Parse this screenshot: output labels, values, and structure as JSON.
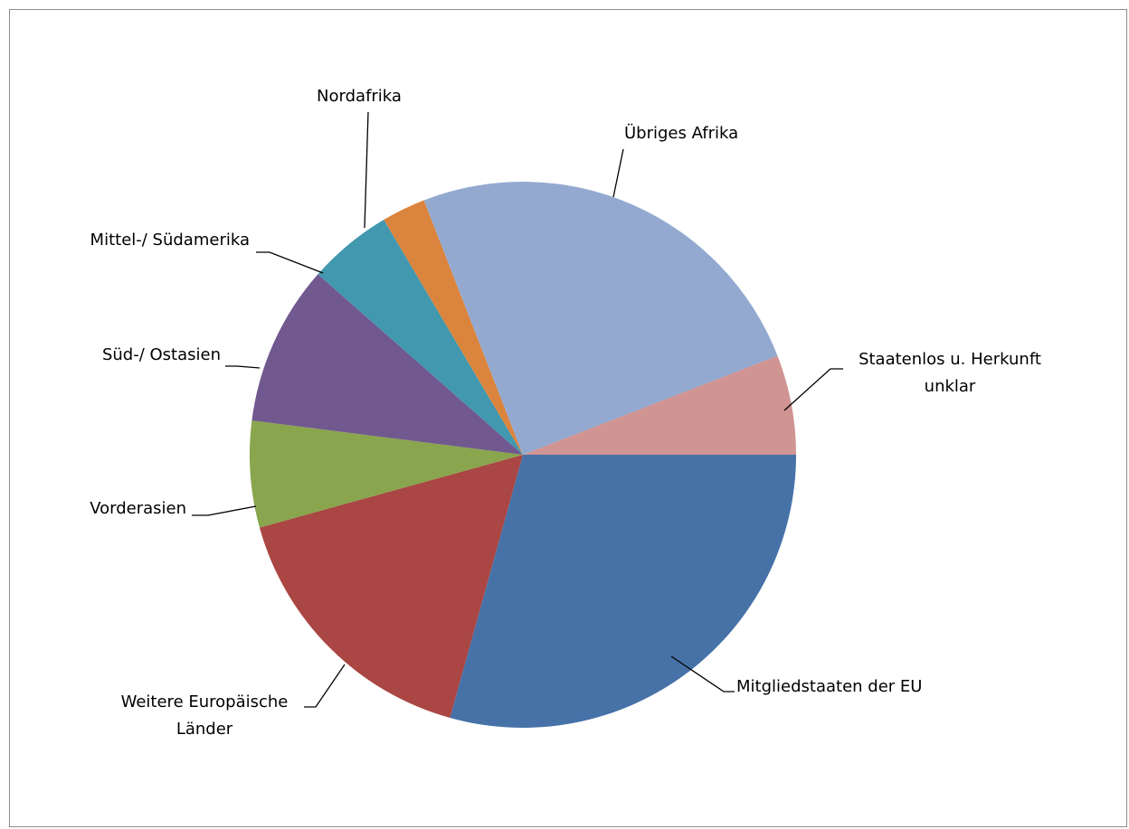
{
  "chart_data": {
    "type": "pie",
    "title": "",
    "start_angle_deg": 0,
    "direction": "clockwise",
    "slices": [
      {
        "label": "Mitgliedstaaten der EU",
        "label_lines": [
          "Mitgliedstaaten der EU"
        ],
        "value": 29.3,
        "color": "#4672A8"
      },
      {
        "label": "Weitere Europäische Länder",
        "label_lines": [
          "Weitere Europäische",
          "Länder"
        ],
        "value": 16.4,
        "color": "#AA4643"
      },
      {
        "label": "Vorderasien",
        "label_lines": [
          "Vorderasien"
        ],
        "value": 6.3,
        "color": "#89A54E"
      },
      {
        "label": "Süd-/ Ostasien",
        "label_lines": [
          "Süd-/ Ostasien"
        ],
        "value": 9.5,
        "color": "#71588F"
      },
      {
        "label": "Mittel-/ Südamerika",
        "label_lines": [
          "Mittel-/ Südamerika"
        ],
        "value": 5.0,
        "color": "#4198AF"
      },
      {
        "label": "Nordafrika",
        "label_lines": [
          "Nordafrika"
        ],
        "value": 2.6,
        "color": "#DB843D"
      },
      {
        "label": "Übriges Afrika",
        "label_lines": [
          "Übriges Afrika"
        ],
        "value": 25.0,
        "color": "#93A9D0"
      },
      {
        "label": "Staatenlos u. Herkunft unklar",
        "label_lines": [
          "Staatenlos u. Herkunft",
          "unklar"
        ],
        "value": 5.9,
        "color": "#D09493"
      }
    ]
  }
}
